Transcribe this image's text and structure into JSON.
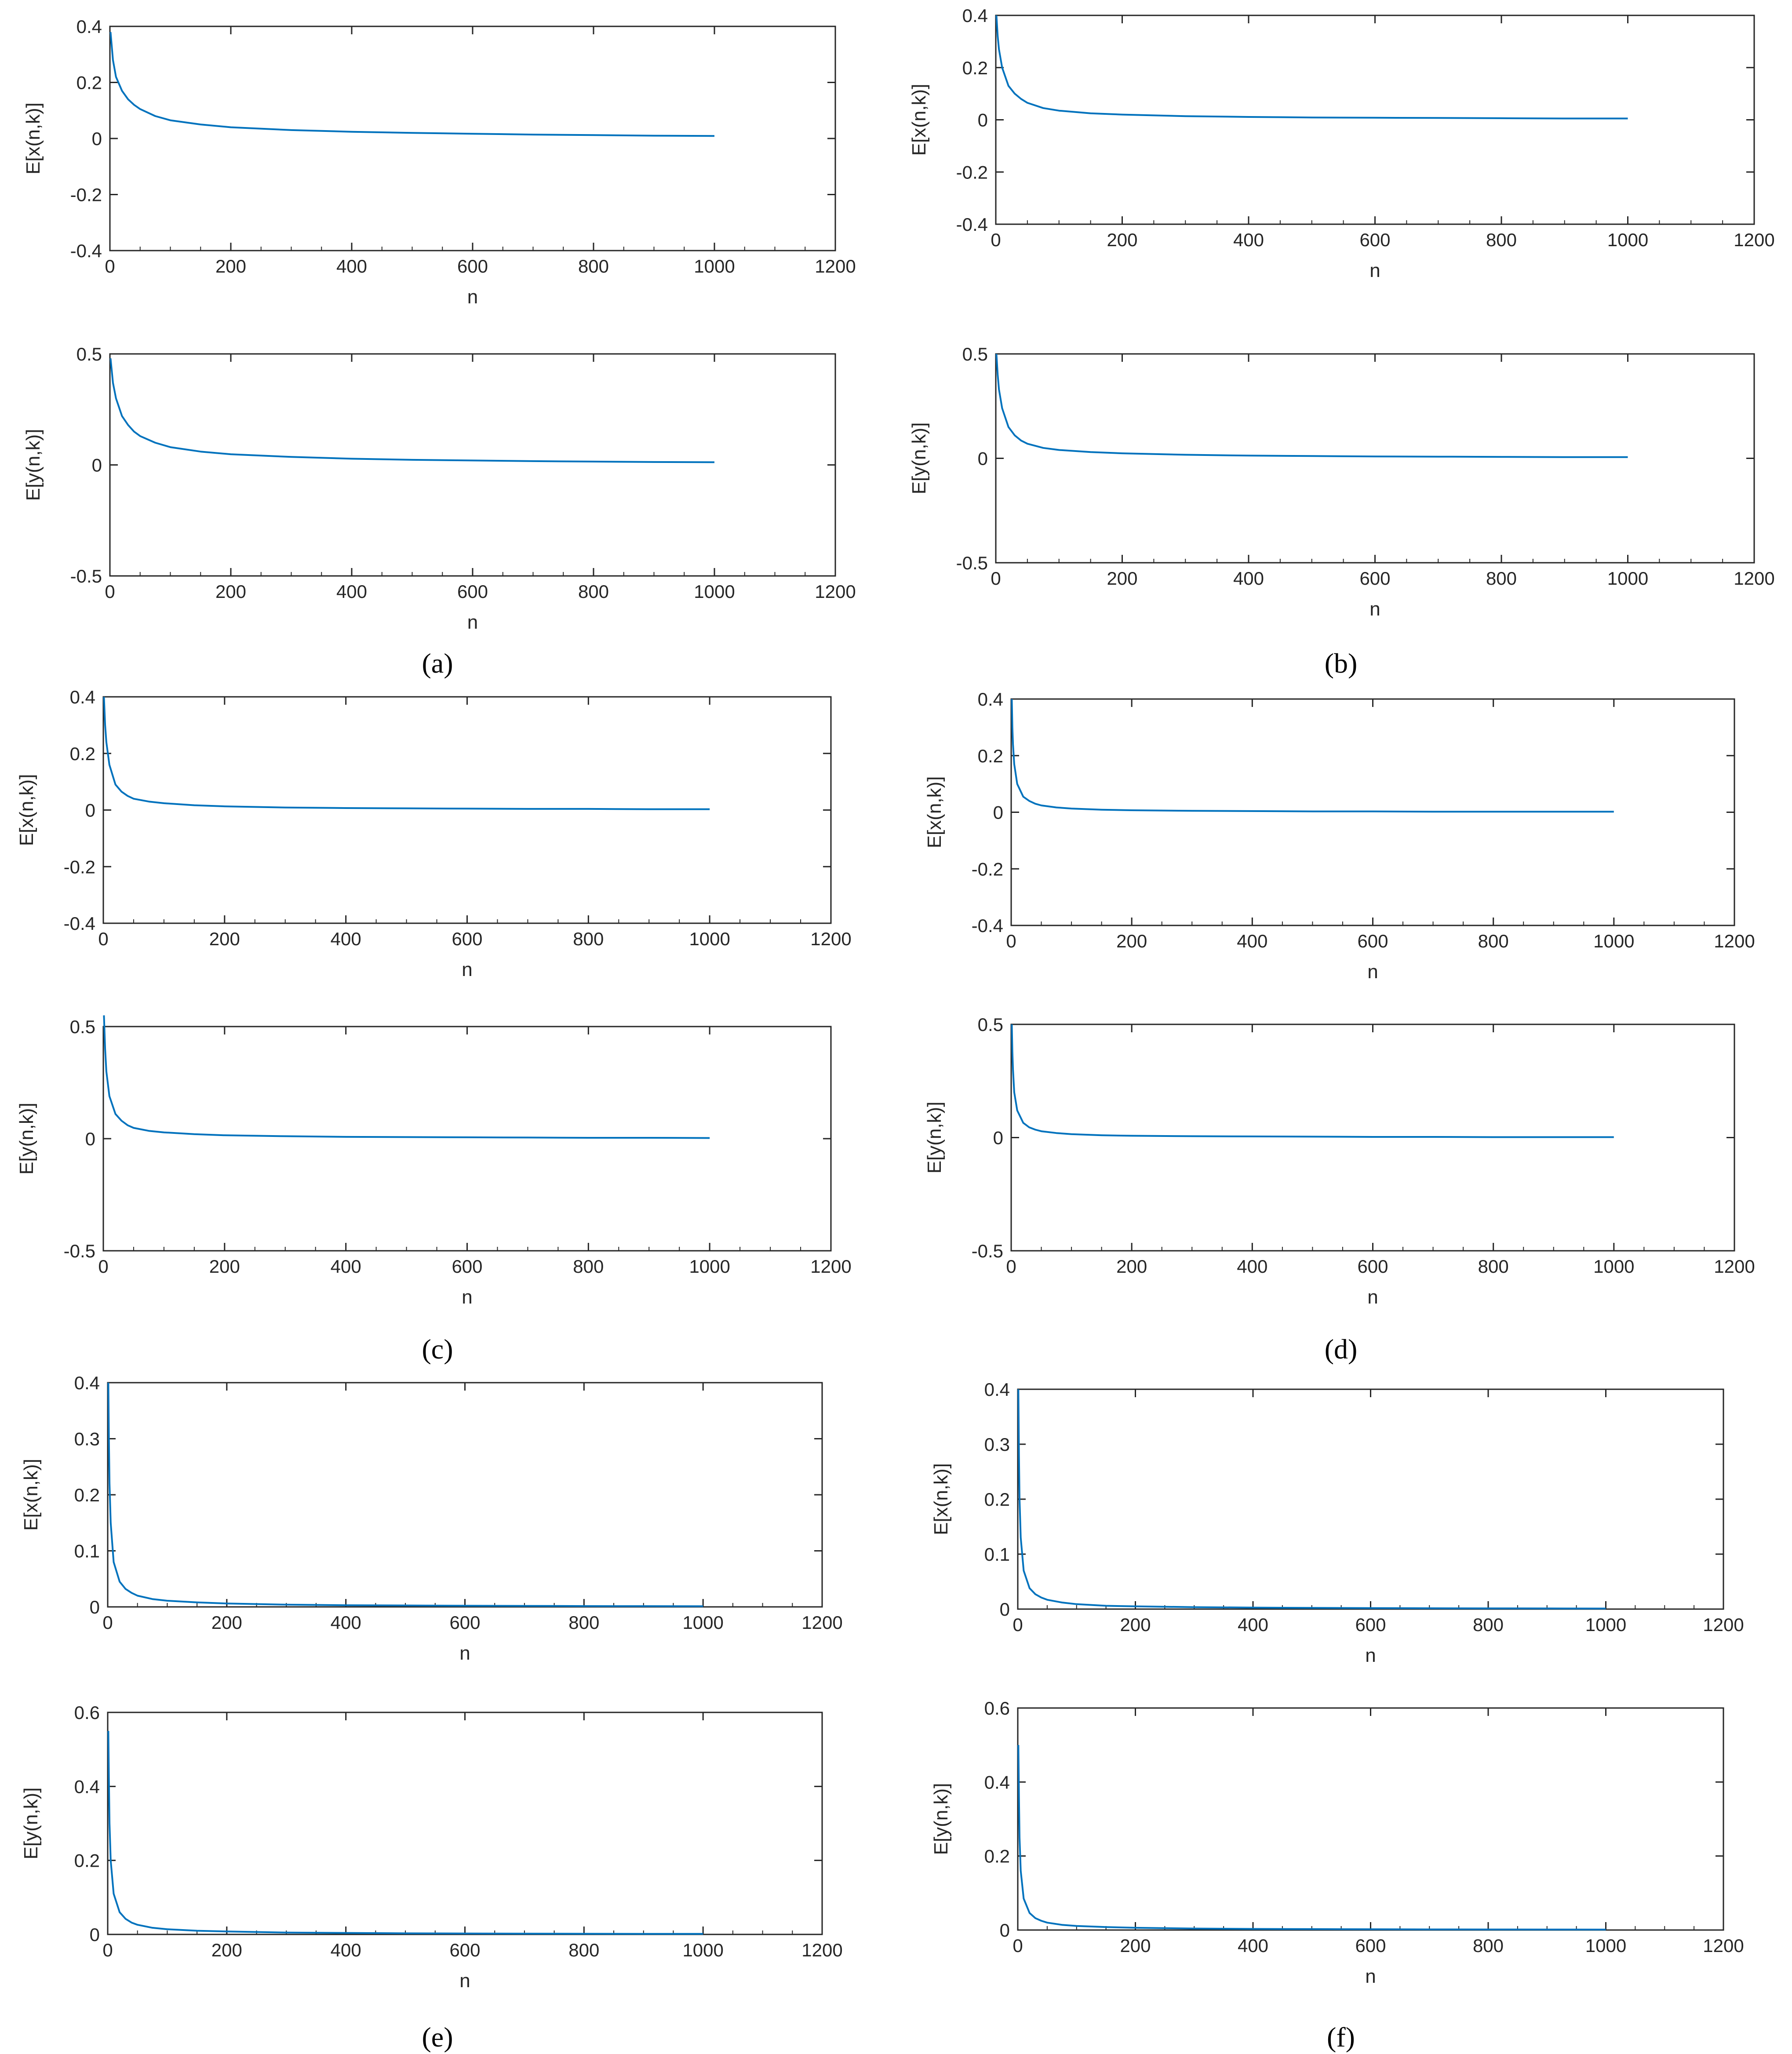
{
  "chart_data": [
    {
      "type": "line",
      "panel": "a",
      "subplot": "top",
      "xlabel": "n",
      "ylabel": "E[x(n,k)]",
      "xlim": [
        0,
        1200
      ],
      "ylim": [
        -0.4,
        0.4
      ],
      "xticks": [
        0,
        200,
        400,
        600,
        800,
        1000,
        1200
      ],
      "yticks": [
        -0.4,
        -0.2,
        0,
        0.2,
        0.4
      ],
      "series": [
        {
          "color": "#0072BD",
          "x": [
            1,
            5,
            10,
            20,
            30,
            40,
            50,
            75,
            100,
            150,
            200,
            300,
            400,
            500,
            600,
            700,
            800,
            900,
            1000
          ],
          "y": [
            0.38,
            0.28,
            0.22,
            0.17,
            0.14,
            0.12,
            0.105,
            0.08,
            0.065,
            0.05,
            0.04,
            0.03,
            0.024,
            0.02,
            0.017,
            0.014,
            0.012,
            0.01,
            0.009
          ]
        }
      ]
    },
    {
      "type": "line",
      "panel": "a",
      "subplot": "bottom",
      "xlabel": "n",
      "ylabel": "E[y(n,k)]",
      "xlim": [
        0,
        1200
      ],
      "ylim": [
        -0.5,
        0.5
      ],
      "xticks": [
        0,
        200,
        400,
        600,
        800,
        1000,
        1200
      ],
      "yticks": [
        -0.5,
        0,
        0.5
      ],
      "series": [
        {
          "color": "#0072BD",
          "x": [
            1,
            5,
            10,
            20,
            30,
            40,
            50,
            75,
            100,
            150,
            200,
            300,
            400,
            500,
            600,
            700,
            800,
            900,
            1000
          ],
          "y": [
            0.48,
            0.37,
            0.3,
            0.22,
            0.18,
            0.15,
            0.13,
            0.1,
            0.08,
            0.06,
            0.048,
            0.036,
            0.028,
            0.023,
            0.02,
            0.017,
            0.015,
            0.013,
            0.012
          ]
        }
      ]
    },
    {
      "type": "line",
      "panel": "b",
      "subplot": "top",
      "xlabel": "n",
      "ylabel": "E[x(n,k)]",
      "xlim": [
        0,
        1200
      ],
      "ylim": [
        -0.4,
        0.4
      ],
      "xticks": [
        0,
        200,
        400,
        600,
        800,
        1000,
        1200
      ],
      "yticks": [
        -0.4,
        -0.2,
        0,
        0.2,
        0.4
      ],
      "series": [
        {
          "color": "#0072BD",
          "x": [
            1,
            3,
            5,
            10,
            20,
            30,
            40,
            50,
            75,
            100,
            150,
            200,
            300,
            400,
            500,
            600,
            700,
            800,
            900,
            1000
          ],
          "y": [
            0.4,
            0.32,
            0.27,
            0.2,
            0.13,
            0.1,
            0.08,
            0.065,
            0.045,
            0.035,
            0.025,
            0.02,
            0.014,
            0.011,
            0.009,
            0.008,
            0.007,
            0.006,
            0.005,
            0.005
          ]
        }
      ]
    },
    {
      "type": "line",
      "panel": "b",
      "subplot": "bottom",
      "xlabel": "n",
      "ylabel": "E[y(n,k)]",
      "xlim": [
        0,
        1200
      ],
      "ylim": [
        -0.5,
        0.5
      ],
      "xticks": [
        0,
        200,
        400,
        600,
        800,
        1000,
        1200
      ],
      "yticks": [
        -0.5,
        0,
        0.5
      ],
      "series": [
        {
          "color": "#0072BD",
          "x": [
            1,
            3,
            5,
            10,
            20,
            30,
            40,
            50,
            75,
            100,
            150,
            200,
            300,
            400,
            500,
            600,
            700,
            800,
            900,
            1000
          ],
          "y": [
            0.5,
            0.4,
            0.33,
            0.24,
            0.15,
            0.11,
            0.085,
            0.07,
            0.05,
            0.04,
            0.03,
            0.024,
            0.017,
            0.013,
            0.011,
            0.009,
            0.008,
            0.007,
            0.006,
            0.006
          ]
        }
      ]
    },
    {
      "type": "line",
      "panel": "c",
      "subplot": "top",
      "xlabel": "n",
      "ylabel": "E[x(n,k)]",
      "xlim": [
        0,
        1200
      ],
      "ylim": [
        -0.4,
        0.4
      ],
      "xticks": [
        0,
        200,
        400,
        600,
        800,
        1000,
        1200
      ],
      "yticks": [
        -0.4,
        -0.2,
        0,
        0.2,
        0.4
      ],
      "series": [
        {
          "color": "#0072BD",
          "x": [
            1,
            3,
            5,
            10,
            20,
            30,
            40,
            50,
            75,
            100,
            150,
            200,
            300,
            400,
            500,
            600,
            700,
            800,
            900,
            1000
          ],
          "y": [
            0.4,
            0.3,
            0.24,
            0.16,
            0.09,
            0.065,
            0.05,
            0.04,
            0.03,
            0.024,
            0.017,
            0.013,
            0.009,
            0.007,
            0.006,
            0.005,
            0.004,
            0.004,
            0.003,
            0.003
          ]
        }
      ]
    },
    {
      "type": "line",
      "panel": "c",
      "subplot": "bottom",
      "xlabel": "n",
      "ylabel": "E[y(n,k)]",
      "xlim": [
        0,
        1200
      ],
      "ylim": [
        -0.5,
        0.5
      ],
      "xticks": [
        0,
        200,
        400,
        600,
        800,
        1000,
        1200
      ],
      "yticks": [
        -0.5,
        0,
        0.5
      ],
      "series": [
        {
          "color": "#0072BD",
          "x": [
            1,
            3,
            5,
            10,
            20,
            30,
            40,
            50,
            75,
            100,
            150,
            200,
            300,
            400,
            500,
            600,
            700,
            800,
            900,
            1000
          ],
          "y": [
            0.55,
            0.4,
            0.3,
            0.19,
            0.11,
            0.08,
            0.06,
            0.048,
            0.035,
            0.028,
            0.02,
            0.015,
            0.011,
            0.008,
            0.007,
            0.006,
            0.005,
            0.004,
            0.004,
            0.003
          ]
        }
      ]
    },
    {
      "type": "line",
      "panel": "d",
      "subplot": "top",
      "xlabel": "n",
      "ylabel": "E[x(n,k)]",
      "xlim": [
        0,
        1200
      ],
      "ylim": [
        -0.4,
        0.4
      ],
      "xticks": [
        0,
        200,
        400,
        600,
        800,
        1000,
        1200
      ],
      "yticks": [
        -0.4,
        -0.2,
        0,
        0.2,
        0.4
      ],
      "series": [
        {
          "color": "#0072BD",
          "x": [
            1,
            2,
            3,
            5,
            10,
            20,
            30,
            40,
            50,
            75,
            100,
            150,
            200,
            300,
            400,
            500,
            600,
            700,
            800,
            900,
            1000
          ],
          "y": [
            0.4,
            0.3,
            0.24,
            0.17,
            0.1,
            0.055,
            0.04,
            0.03,
            0.024,
            0.017,
            0.013,
            0.009,
            0.007,
            0.005,
            0.004,
            0.003,
            0.003,
            0.002,
            0.002,
            0.002,
            0.002
          ]
        }
      ]
    },
    {
      "type": "line",
      "panel": "d",
      "subplot": "bottom",
      "xlabel": "n",
      "ylabel": "E[y(n,k)]",
      "xlim": [
        0,
        1200
      ],
      "ylim": [
        -0.5,
        0.5
      ],
      "xticks": [
        0,
        200,
        400,
        600,
        800,
        1000,
        1200
      ],
      "yticks": [
        -0.5,
        0,
        0.5
      ],
      "series": [
        {
          "color": "#0072BD",
          "x": [
            1,
            2,
            3,
            5,
            10,
            20,
            30,
            40,
            50,
            75,
            100,
            150,
            200,
            300,
            400,
            500,
            600,
            700,
            800,
            900,
            1000
          ],
          "y": [
            0.5,
            0.38,
            0.3,
            0.2,
            0.12,
            0.065,
            0.045,
            0.035,
            0.028,
            0.02,
            0.015,
            0.01,
            0.008,
            0.006,
            0.005,
            0.004,
            0.003,
            0.003,
            0.002,
            0.002,
            0.002
          ]
        }
      ]
    },
    {
      "type": "line",
      "panel": "e",
      "subplot": "top",
      "xlabel": "n",
      "ylabel": "E[x(n,k)]",
      "xlim": [
        0,
        1200
      ],
      "ylim": [
        0,
        0.4
      ],
      "xticks": [
        0,
        200,
        400,
        600,
        800,
        1000,
        1200
      ],
      "yticks": [
        0,
        0.1,
        0.2,
        0.3,
        0.4
      ],
      "series": [
        {
          "color": "#0072BD",
          "x": [
            1,
            2,
            3,
            5,
            10,
            20,
            30,
            40,
            50,
            75,
            100,
            150,
            200,
            300,
            400,
            500,
            600,
            700,
            800,
            900,
            1000
          ],
          "y": [
            0.4,
            0.3,
            0.22,
            0.15,
            0.08,
            0.045,
            0.032,
            0.025,
            0.02,
            0.014,
            0.011,
            0.008,
            0.006,
            0.004,
            0.003,
            0.0025,
            0.002,
            0.0018,
            0.0015,
            0.0013,
            0.0012
          ]
        }
      ]
    },
    {
      "type": "line",
      "panel": "e",
      "subplot": "bottom",
      "xlabel": "n",
      "ylabel": "E[y(n,k)]",
      "xlim": [
        0,
        1200
      ],
      "ylim": [
        0,
        0.6
      ],
      "xticks": [
        0,
        200,
        400,
        600,
        800,
        1000,
        1200
      ],
      "yticks": [
        0,
        0.2,
        0.4,
        0.6
      ],
      "series": [
        {
          "color": "#0072BD",
          "x": [
            1,
            2,
            3,
            5,
            10,
            20,
            30,
            40,
            50,
            75,
            100,
            150,
            200,
            300,
            400,
            500,
            600,
            700,
            800,
            900,
            1000
          ],
          "y": [
            0.55,
            0.42,
            0.3,
            0.2,
            0.11,
            0.06,
            0.042,
            0.032,
            0.026,
            0.018,
            0.014,
            0.01,
            0.008,
            0.005,
            0.004,
            0.003,
            0.0025,
            0.002,
            0.0018,
            0.0016,
            0.0014
          ]
        }
      ]
    },
    {
      "type": "line",
      "panel": "f",
      "subplot": "top",
      "xlabel": "n",
      "ylabel": "E[x(n,k)]",
      "xlim": [
        0,
        1200
      ],
      "ylim": [
        0,
        0.4
      ],
      "xticks": [
        0,
        200,
        400,
        600,
        800,
        1000,
        1200
      ],
      "yticks": [
        0,
        0.1,
        0.2,
        0.3,
        0.4
      ],
      "series": [
        {
          "color": "#0072BD",
          "x": [
            1,
            2,
            3,
            5,
            10,
            20,
            30,
            40,
            50,
            75,
            100,
            150,
            200,
            300,
            400,
            500,
            600,
            700,
            800,
            900,
            1000
          ],
          "y": [
            0.4,
            0.28,
            0.2,
            0.13,
            0.07,
            0.038,
            0.027,
            0.021,
            0.017,
            0.012,
            0.009,
            0.006,
            0.005,
            0.0035,
            0.0027,
            0.0022,
            0.0018,
            0.0015,
            0.0013,
            0.0012,
            0.001
          ]
        }
      ]
    },
    {
      "type": "line",
      "panel": "f",
      "subplot": "bottom",
      "xlabel": "n",
      "ylabel": "E[y(n,k)]",
      "xlim": [
        0,
        1200
      ],
      "ylim": [
        0,
        0.6
      ],
      "xticks": [
        0,
        200,
        400,
        600,
        800,
        1000,
        1200
      ],
      "yticks": [
        0,
        0.2,
        0.4,
        0.6
      ],
      "series": [
        {
          "color": "#0072BD",
          "x": [
            1,
            2,
            3,
            5,
            10,
            20,
            30,
            40,
            50,
            75,
            100,
            150,
            200,
            300,
            400,
            500,
            600,
            700,
            800,
            900,
            1000
          ],
          "y": [
            0.5,
            0.36,
            0.25,
            0.16,
            0.085,
            0.046,
            0.032,
            0.025,
            0.02,
            0.014,
            0.011,
            0.008,
            0.006,
            0.004,
            0.003,
            0.0025,
            0.002,
            0.0017,
            0.0015,
            0.0013,
            0.0012
          ]
        }
      ]
    }
  ],
  "panel_labels": [
    "(a)",
    "(b)",
    "(c)",
    "(d)",
    "(e)",
    "(f)"
  ]
}
